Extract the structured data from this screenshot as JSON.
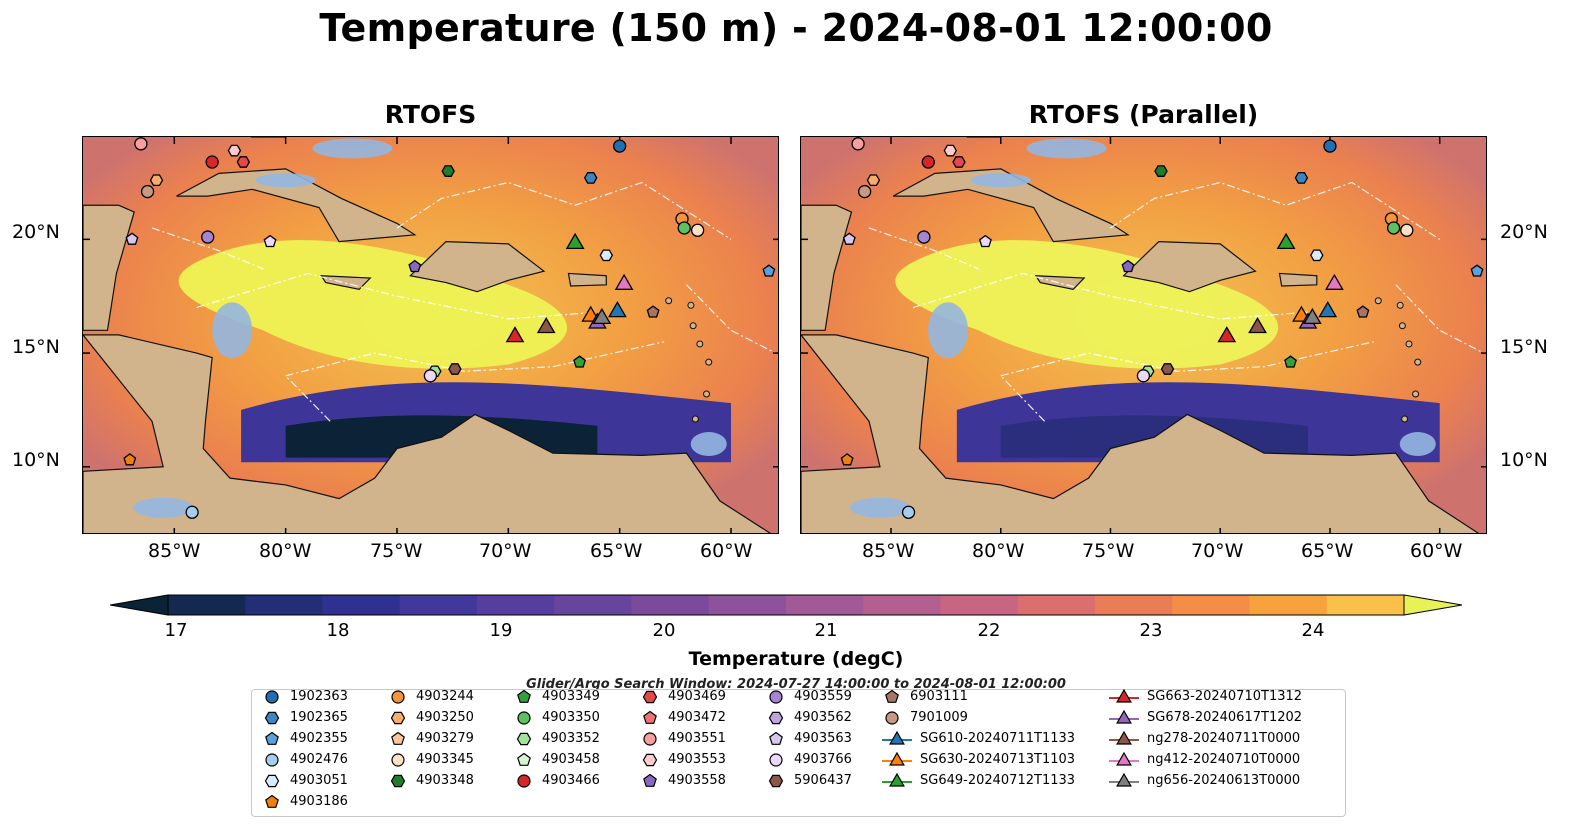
{
  "title": "Temperature (150 m) - 2024-08-01 12:00:00",
  "panels": [
    {
      "title": "RTOFS"
    },
    {
      "title": "RTOFS (Parallel)"
    }
  ],
  "lon_ticks": [
    "85°W",
    "80°W",
    "75°W",
    "70°W",
    "65°W",
    "60°W"
  ],
  "lat_ticks": [
    "20°N",
    "15°N",
    "10°N"
  ],
  "colorbar": {
    "label": "Temperature (degC)",
    "ticks": [
      "17",
      "18",
      "19",
      "20",
      "21",
      "22",
      "23",
      "24"
    ],
    "min": 16.5,
    "max": 24.5,
    "step": 0.5,
    "extend": "both",
    "colors": [
      "#0b2337",
      "#13294f",
      "#222e76",
      "#2f3190",
      "#42379a",
      "#563e9e",
      "#68449e",
      "#7b4a9d",
      "#8e519b",
      "#a25998",
      "#b55f90",
      "#c86583",
      "#da6f6d",
      "#e97d56",
      "#f38d47",
      "#f8a23e",
      "#f9c04a",
      "#e8f257"
    ]
  },
  "search_window": "Glider/Argo Search Window: 2024-07-27 14:00:00 to 2024-08-01 12:00:00",
  "legend": {
    "items": [
      {
        "label": "1902363",
        "marker": "circle",
        "color": "#1f6fb2"
      },
      {
        "label": "1902365",
        "marker": "hexagon",
        "color": "#3b85c4"
      },
      {
        "label": "4902355",
        "marker": "pentagon",
        "color": "#5aa0dd"
      },
      {
        "label": "4902476",
        "marker": "circle",
        "color": "#a7cdee"
      },
      {
        "label": "4903051",
        "marker": "hexagon",
        "color": "#dbeaf8"
      },
      {
        "label": "4903186",
        "marker": "pentagon",
        "color": "#f07f0c"
      },
      {
        "label": "4903244",
        "marker": "circle",
        "color": "#f5953a"
      },
      {
        "label": "4903250",
        "marker": "hexagon",
        "color": "#f8ad6a"
      },
      {
        "label": "4903279",
        "marker": "pentagon",
        "color": "#fbc79a"
      },
      {
        "label": "4903345",
        "marker": "circle",
        "color": "#fde1c6"
      },
      {
        "label": "4903348",
        "marker": "hexagon",
        "color": "#1e7d2a"
      },
      {
        "label": "4903349",
        "marker": "pentagon",
        "color": "#34a03c"
      },
      {
        "label": "4903350",
        "marker": "circle",
        "color": "#5cc25f"
      },
      {
        "label": "4903352",
        "marker": "hexagon",
        "color": "#a2e39a"
      },
      {
        "label": "4903458",
        "marker": "pentagon",
        "color": "#d8f5d2"
      },
      {
        "label": "4903466",
        "marker": "circle",
        "color": "#d62728"
      },
      {
        "label": "4903469",
        "marker": "hexagon",
        "color": "#e5484a"
      },
      {
        "label": "4903472",
        "marker": "pentagon",
        "color": "#f07173"
      },
      {
        "label": "4903551",
        "marker": "circle",
        "color": "#f79e9f"
      },
      {
        "label": "4903553",
        "marker": "hexagon",
        "color": "#fccdcd"
      },
      {
        "label": "4903558",
        "marker": "pentagon",
        "color": "#8a67c4"
      },
      {
        "label": "4903559",
        "marker": "circle",
        "color": "#a385d3"
      },
      {
        "label": "4903562",
        "marker": "hexagon",
        "color": "#bca6e0"
      },
      {
        "label": "4903563",
        "marker": "pentagon",
        "color": "#d7c8ef"
      },
      {
        "label": "4903766",
        "marker": "circle",
        "color": "#ead7f9"
      },
      {
        "label": "5906437",
        "marker": "hexagon",
        "color": "#8c564b"
      },
      {
        "label": "6903111",
        "marker": "pentagon",
        "color": "#a87565"
      },
      {
        "label": "7901009",
        "marker": "circle",
        "color": "#c79882"
      },
      {
        "label": "SG610-20240711T1133",
        "marker": "triangle",
        "color": "#1f77b4"
      },
      {
        "label": "SG630-20240713T1103",
        "marker": "triangle",
        "color": "#ff7f0e"
      },
      {
        "label": "SG649-20240712T1133",
        "marker": "triangle",
        "color": "#2ca02c"
      },
      {
        "label": "SG663-20240710T1312",
        "marker": "triangle",
        "color": "#d62728"
      },
      {
        "label": "SG678-20240617T1202",
        "marker": "triangle",
        "color": "#9467bd"
      },
      {
        "label": "ng278-20240711T0000",
        "marker": "triangle",
        "color": "#8c564b"
      },
      {
        "label": "ng412-20240710T0000",
        "marker": "triangle",
        "color": "#e377c2"
      },
      {
        "label": "ng656-20240613T0000",
        "marker": "triangle",
        "color": "#7f7f7f"
      }
    ]
  },
  "floats": [
    {
      "marker": "circle",
      "color": "#1f6fb2",
      "lon": -65,
      "lat": 24.1
    },
    {
      "marker": "hexagon",
      "color": "#3b85c4",
      "lon": -66.3,
      "lat": 22.7
    },
    {
      "marker": "pentagon",
      "color": "#5aa0dd",
      "lon": -58.3,
      "lat": 18.6
    },
    {
      "marker": "circle",
      "color": "#a7cdee",
      "lon": -84.2,
      "lat": 8.0
    },
    {
      "marker": "hexagon",
      "color": "#dbeaf8",
      "lon": -65.6,
      "lat": 19.3
    },
    {
      "marker": "pentagon",
      "color": "#f07f0c",
      "lon": -87.0,
      "lat": 10.3
    },
    {
      "marker": "circle",
      "color": "#f5953a",
      "lon": -62.2,
      "lat": 20.9
    },
    {
      "marker": "hexagon",
      "color": "#f8ad6a",
      "lon": -85.8,
      "lat": 22.6
    },
    {
      "marker": "pentagon",
      "color": "#fbc79a",
      "lon": -86.5,
      "lat": 24.2
    },
    {
      "marker": "circle",
      "color": "#fde1c6",
      "lon": -61.5,
      "lat": 20.4
    },
    {
      "marker": "hexagon",
      "color": "#1e7d2a",
      "lon": -72.7,
      "lat": 23.0
    },
    {
      "marker": "pentagon",
      "color": "#34a03c",
      "lon": -66.8,
      "lat": 14.6
    },
    {
      "marker": "circle",
      "color": "#5cc25f",
      "lon": -62.1,
      "lat": 20.5
    },
    {
      "marker": "hexagon",
      "color": "#a2e39a",
      "lon": -73.3,
      "lat": 14.2
    },
    {
      "marker": "circle",
      "color": "#d62728",
      "lon": -83.3,
      "lat": 23.4
    },
    {
      "marker": "hexagon",
      "color": "#e5484a",
      "lon": -81.9,
      "lat": 23.4
    },
    {
      "marker": "circle",
      "color": "#f79e9f",
      "lon": -86.5,
      "lat": 24.2
    },
    {
      "marker": "hexagon",
      "color": "#fccdcd",
      "lon": -82.3,
      "lat": 23.9
    },
    {
      "marker": "pentagon",
      "color": "#8a67c4",
      "lon": -74.2,
      "lat": 18.8
    },
    {
      "marker": "circle",
      "color": "#a385d3",
      "lon": -83.5,
      "lat": 20.1
    },
    {
      "marker": "pentagon",
      "color": "#d7c8ef",
      "lon": -86.9,
      "lat": 20.0
    },
    {
      "marker": "pentagon",
      "color": "#ead7f9",
      "lon": -80.7,
      "lat": 19.9
    },
    {
      "marker": "circle",
      "color": "#ead7f9",
      "lon": -73.5,
      "lat": 14.0
    },
    {
      "marker": "hexagon",
      "color": "#8c564b",
      "lon": -72.4,
      "lat": 14.3
    },
    {
      "marker": "pentagon",
      "color": "#a87565",
      "lon": -63.5,
      "lat": 16.8
    },
    {
      "marker": "circle",
      "color": "#c79882",
      "lon": -86.2,
      "lat": 22.1
    }
  ],
  "gliders": [
    {
      "color": "#1f77b4",
      "lon": -65.1,
      "lat": 16.9
    },
    {
      "color": "#ff7f0e",
      "lon": -66.3,
      "lat": 16.7
    },
    {
      "color": "#2ca02c",
      "lon": -67.0,
      "lat": 19.9
    },
    {
      "color": "#d62728",
      "lon": -69.7,
      "lat": 15.8
    },
    {
      "color": "#9467bd",
      "lon": -66.0,
      "lat": 16.4
    },
    {
      "color": "#8c564b",
      "lon": -68.3,
      "lat": 16.2
    },
    {
      "color": "#e377c2",
      "lon": -64.8,
      "lat": 18.1
    },
    {
      "color": "#7f7f7f",
      "lon": -65.8,
      "lat": 16.6
    }
  ]
}
